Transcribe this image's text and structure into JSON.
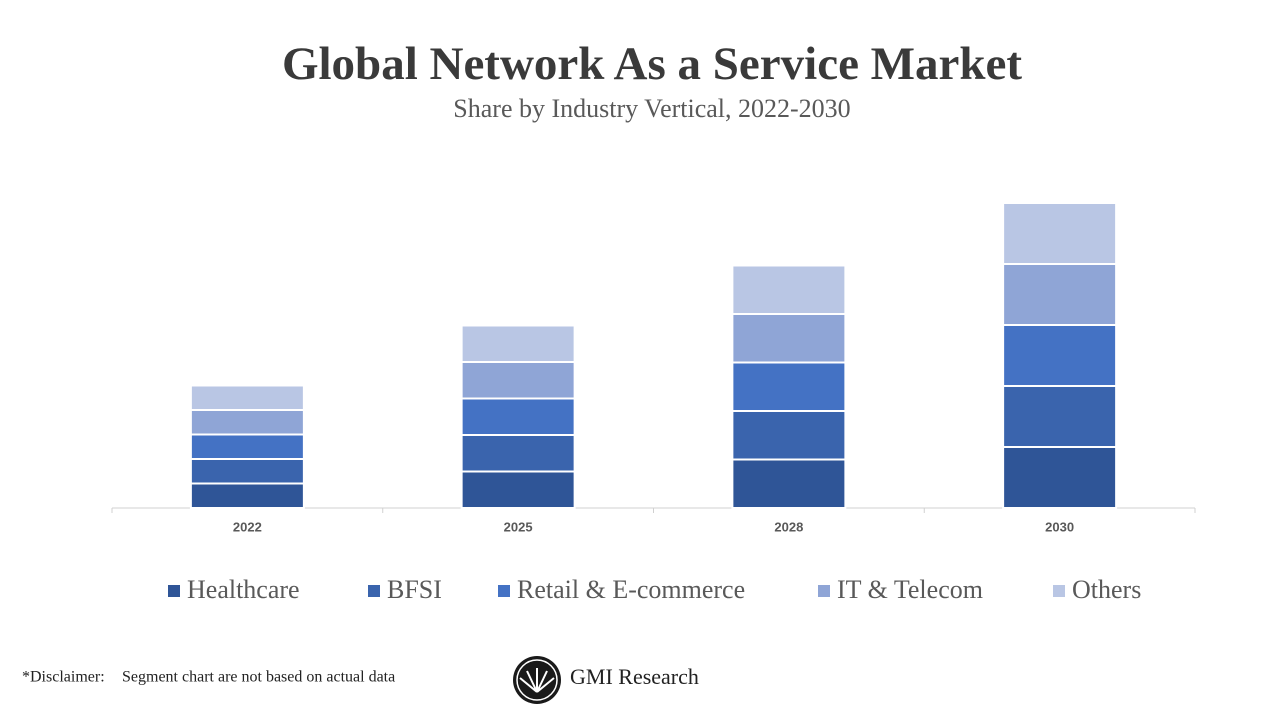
{
  "chart_data": {
    "type": "stacked_bar",
    "title": "Global Network As a Service Market",
    "subtitle": "Share by Industry Vertical, 2022-2030",
    "categories": [
      "2022",
      "2025",
      "2028",
      "2030"
    ],
    "series": [
      {
        "name": "Healthcare",
        "color": "#2f5597",
        "values": [
          24.5,
          36.5,
          48.5,
          61
        ]
      },
      {
        "name": "BFSI",
        "color": "#3a64ad",
        "values": [
          24.5,
          36.5,
          48.5,
          61
        ]
      },
      {
        "name": "Retail & E-commerce",
        "color": "#4472c4",
        "values": [
          24.5,
          36.5,
          48.5,
          61
        ]
      },
      {
        "name": "IT & Telecom",
        "color": "#8fa5d6",
        "values": [
          24.5,
          36.5,
          48.5,
          61
        ]
      },
      {
        "name": "Others",
        "color": "#b9c6e4",
        "values": [
          24.5,
          36.5,
          48.5,
          61
        ]
      }
    ],
    "ylim": [
      0,
      310
    ]
  },
  "footer": {
    "disclaimer_label": "*Disclaimer:",
    "disclaimer_text": "Segment chart are not based on actual data",
    "brand": "GMI Research"
  }
}
